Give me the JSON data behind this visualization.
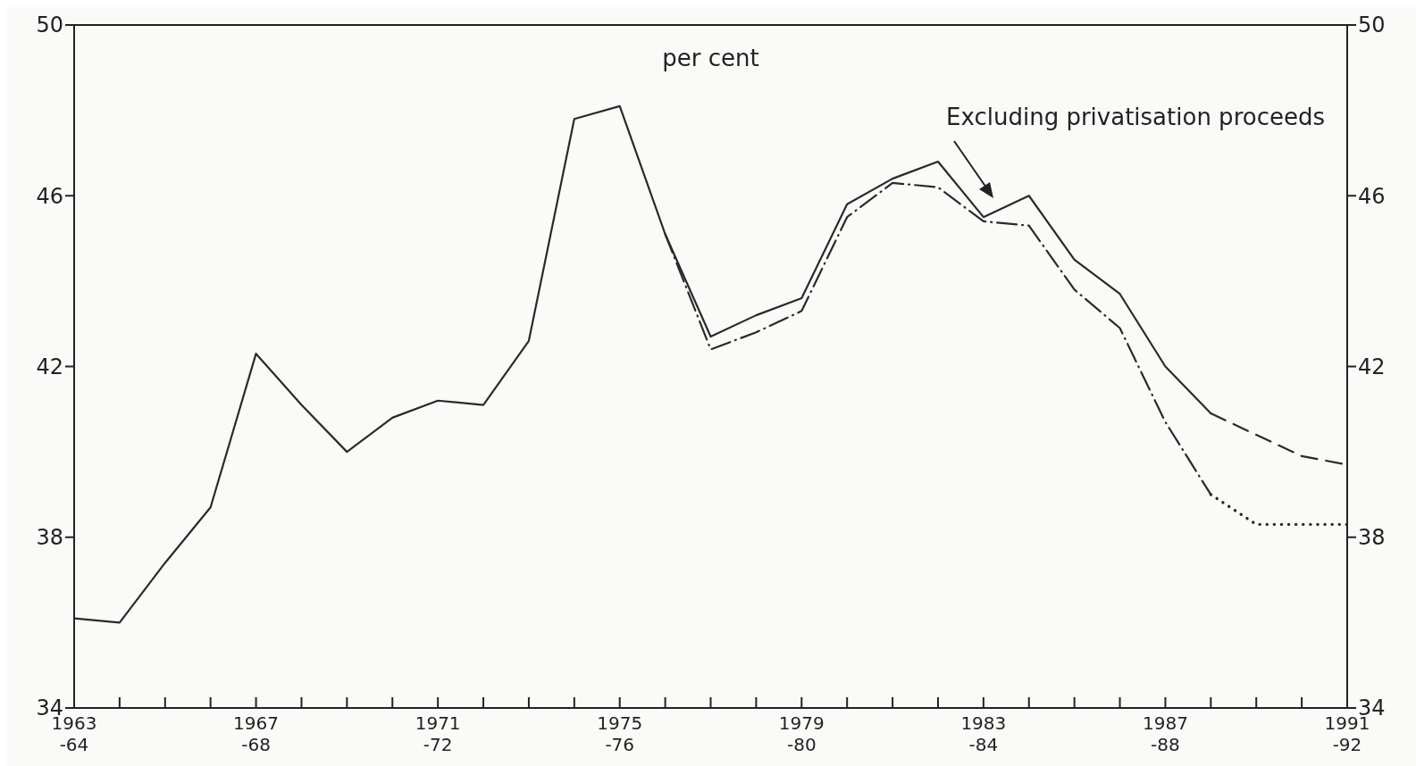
{
  "chart_data": {
    "type": "line",
    "ylabel": "per cent",
    "categories": [
      "1963\n-64",
      null,
      null,
      null,
      "1967\n-68",
      null,
      null,
      null,
      "1971\n-72",
      null,
      null,
      null,
      "1975\n-76",
      null,
      null,
      null,
      "1979\n-80",
      null,
      null,
      null,
      "1983\n-84",
      null,
      null,
      null,
      "1987\n-88",
      null,
      null,
      null,
      "1991\n-92"
    ],
    "series": [
      {
        "color": "#2a2a2a",
        "line_style": "solid",
        "values": [
          36.1,
          36.0,
          37.4,
          38.7,
          42.3,
          41.1,
          40.0,
          40.8,
          41.2,
          41.1,
          42.6,
          47.8,
          48.1,
          45.1,
          42.7,
          43.2,
          43.6,
          45.8,
          46.4,
          46.8,
          45.5,
          46.0,
          44.5,
          43.7,
          42.0,
          40.9,
          null,
          null,
          null
        ]
      },
      {
        "color": "#2a2a2a",
        "line_style": "dashed",
        "values": [
          null,
          null,
          null,
          null,
          null,
          null,
          null,
          null,
          null,
          null,
          null,
          null,
          null,
          null,
          null,
          null,
          null,
          null,
          null,
          null,
          null,
          null,
          null,
          null,
          null,
          40.9,
          40.4,
          39.9,
          39.7
        ]
      },
      {
        "color": "#2a2a2a",
        "line_style": "dashdot",
        "values": [
          null,
          null,
          null,
          null,
          null,
          null,
          null,
          null,
          null,
          null,
          null,
          null,
          null,
          45.1,
          42.4,
          42.8,
          43.3,
          45.5,
          46.3,
          46.2,
          45.4,
          45.3,
          43.8,
          42.9,
          40.7,
          39.0,
          null,
          null,
          null
        ]
      },
      {
        "color": "#2a2a2a",
        "line_style": "dotted",
        "values": [
          null,
          null,
          null,
          null,
          null,
          null,
          null,
          null,
          null,
          null,
          null,
          null,
          null,
          null,
          null,
          null,
          null,
          null,
          null,
          null,
          null,
          null,
          null,
          null,
          null,
          39.0,
          38.3,
          38.3,
          38.3
        ]
      }
    ],
    "ylim": [
      34,
      50
    ],
    "yticks": [
      34,
      38,
      42,
      46,
      50
    ],
    "y2lim": [
      34,
      50
    ],
    "y2ticks": [
      34,
      38,
      42,
      46,
      50
    ],
    "grid": false,
    "marker": "none",
    "annotations": [
      "Excluding privatisation proceeds"
    ]
  }
}
